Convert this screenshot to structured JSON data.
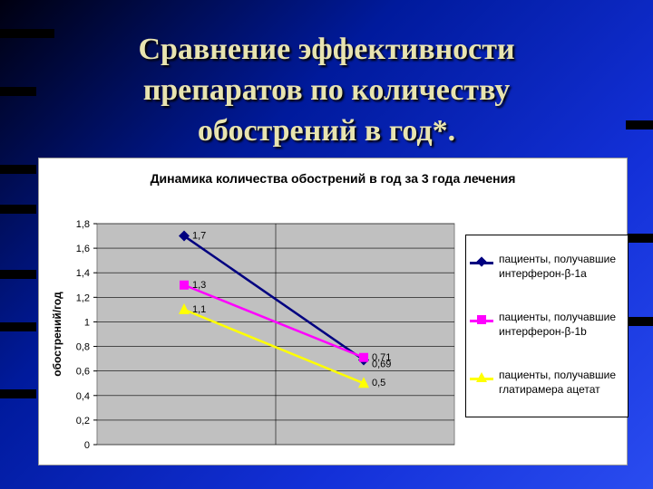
{
  "slide": {
    "title_lines": [
      "Сравнение эффективности",
      "препаратов по количеству",
      "обострений в год*."
    ]
  },
  "colors": {
    "title": "#e8e4b0",
    "plot_bg": "#c0c0c0",
    "navy": "#000080",
    "magenta": "#ff00ff",
    "yellow": "#ffff00"
  },
  "chart_data": {
    "type": "line",
    "title": "Динамика количества обострений в год за 3 года лечения",
    "xlabel": "",
    "ylabel": "обострений/год",
    "ylim": [
      0,
      1.8
    ],
    "yticks": [
      "0",
      "0,2",
      "0,4",
      "0,6",
      "0,8",
      "1",
      "1,2",
      "1,4",
      "1,6",
      "1,8"
    ],
    "categories": [
      "",
      ""
    ],
    "grid": true,
    "legend_position": "right",
    "series": [
      {
        "name": "пациенты, получавшие интерферон-β-1a",
        "values": [
          1.7,
          0.69
        ],
        "labels": [
          "1,7",
          "0,69"
        ],
        "color": "#000080",
        "marker": "diamond"
      },
      {
        "name": "пациенты, получавшие интерферон-β-1b",
        "values": [
          1.3,
          0.71
        ],
        "labels": [
          "1,3",
          "0,71"
        ],
        "color": "#ff00ff",
        "marker": "square"
      },
      {
        "name": "пациенты, получавшие глатирамера ацетат",
        "values": [
          1.1,
          0.5
        ],
        "labels": [
          "1,1",
          "0,5"
        ],
        "color": "#ffff00",
        "marker": "triangle"
      }
    ]
  }
}
